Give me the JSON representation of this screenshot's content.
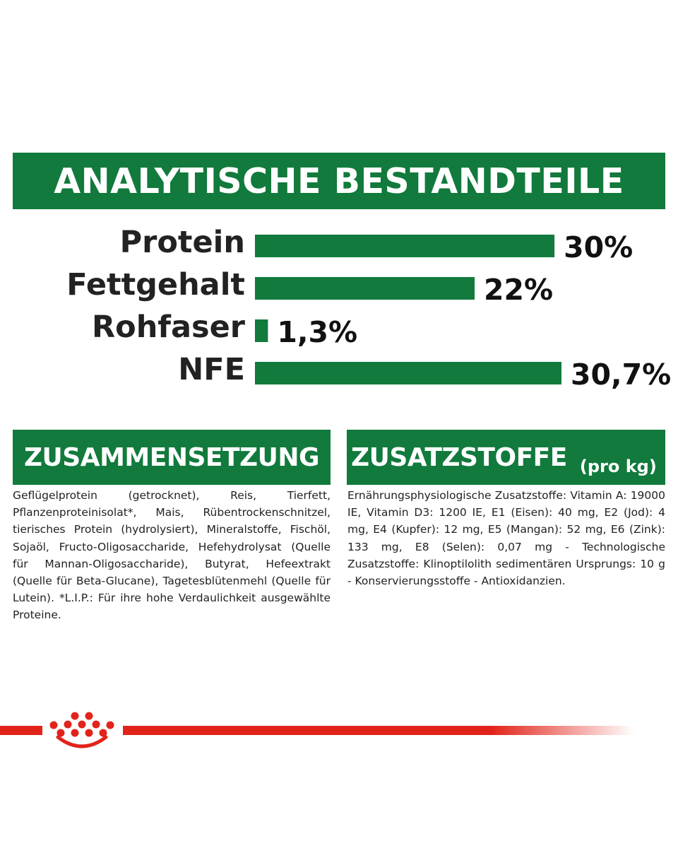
{
  "banner": {
    "title": "ANALYTISCHE BESTANDTEILE"
  },
  "chart_data": {
    "type": "bar",
    "orientation": "horizontal",
    "title": "ANALYTISCHE BESTANDTEILE",
    "categories": [
      "Protein",
      "Fettgehalt",
      "Rohfaser",
      "NFE"
    ],
    "values": [
      30,
      22,
      1.3,
      30.7
    ],
    "value_labels": [
      "30%",
      "22%",
      "1,3%",
      "30,7%"
    ],
    "unit": "%",
    "xlim": [
      0,
      30.7
    ],
    "grid": false,
    "legend": "none",
    "bar_color": "#117a3c"
  },
  "composition": {
    "title": "ZUSAMMENSETZUNG",
    "text": "Geflügelprotein (getrocknet), Reis, Tierfett, Pflanzenproteinisolat*, Mais, Rübentrockenschnitzel, tierisches Protein (hydrolysiert), Mineralstoffe, Fischöl, Sojaöl, Fructo-Oligosaccharide, Hefehydrolysat (Quelle für Mannan-Oligosaccharide), Butyrat, Hefeextrakt (Quelle für Beta-Glucane), Tagetesblütenmehl (Quelle für Lutein). *L.I.P.: Für ihre hohe Verdaulichkeit ausgewählte Proteine."
  },
  "additives": {
    "title": "ZUSATZSTOFFE",
    "subtitle": "(pro kg)",
    "text": "Ernährungsphysiologische Zusatzstoffe: Vitamin A: 19000 IE, Vitamin D3: 1200 IE, E1 (Eisen): 40 mg, E2 (Jod): 4 mg, E4 (Kupfer): 12 mg, E5 (Mangan): 52 mg, E6 (Zink): 133 mg, E8 (Selen): 0,07 mg - Technologische Zusatzstoffe: Klinoptilolith sedimentären Ursprungs: 10 g - Konservierungsstoffe - Antioxidanzien."
  },
  "colors": {
    "brand_green": "#117a3c",
    "brand_red": "#e2231a"
  },
  "icons": {
    "logo": "royal-crown-icon"
  }
}
